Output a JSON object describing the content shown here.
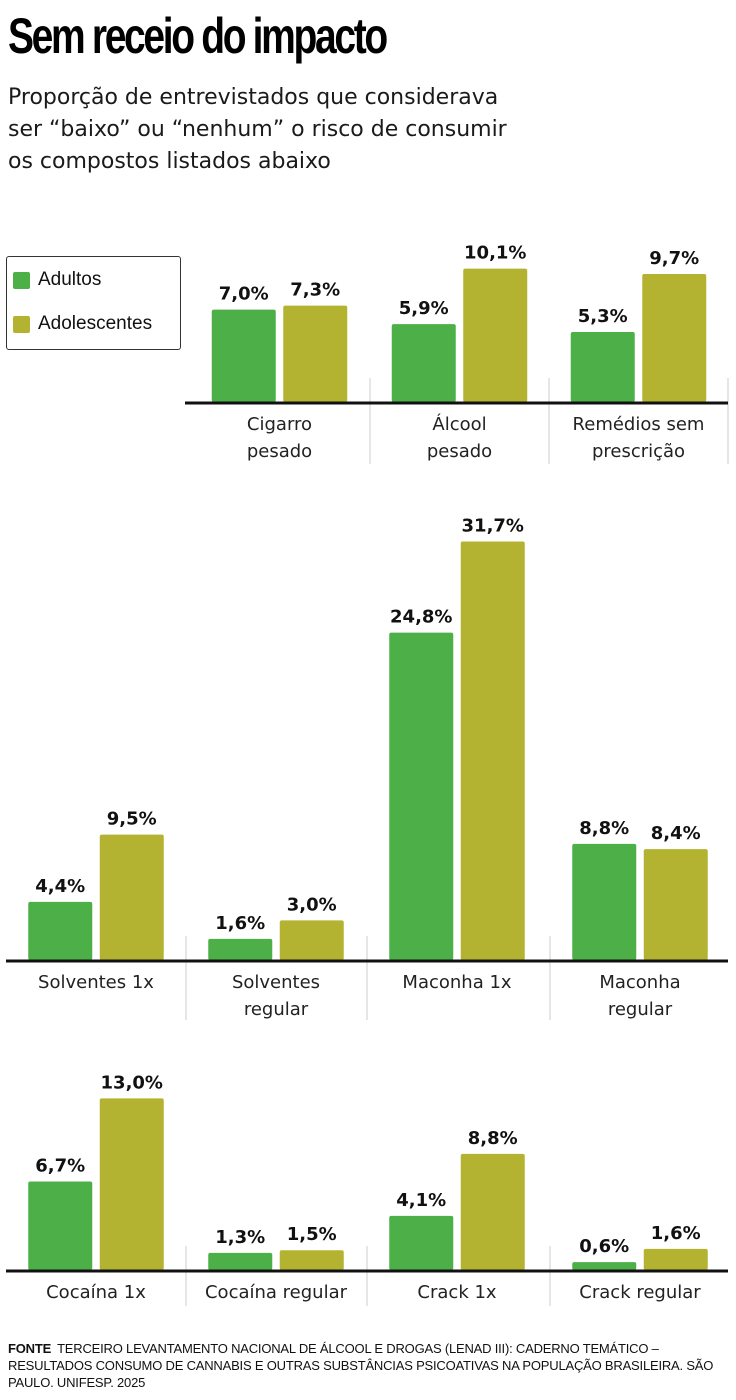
{
  "header": {
    "title": "Sem receio do impacto",
    "subtitle_lines": [
      "Proporção de entrevistados que considerava",
      "ser “baixo” ou “nenhum” o risco de consumir",
      "os compostos listados abaixo"
    ]
  },
  "legend": {
    "items": [
      {
        "label": "Adultos",
        "color": "#4caf47"
      },
      {
        "label": "Adolescentes",
        "color": "#b3b331"
      }
    ]
  },
  "colors": {
    "adultos": "#4caf47",
    "adolescentes": "#b3b331",
    "axis": "#111111",
    "separator": "#cccccc"
  },
  "chart_data": {
    "type": "bar",
    "title": "Sem receio do impacto",
    "xlabel": "",
    "ylabel": "",
    "unit": "%",
    "series": [
      {
        "name": "Adultos",
        "color": "#4caf47"
      },
      {
        "name": "Adolescentes",
        "color": "#b3b331"
      }
    ],
    "panels": [
      {
        "groups": [
          {
            "category": [
              "Cigarro",
              "pesado"
            ],
            "values": [
              7.0,
              7.3
            ],
            "labels": [
              "7,0%",
              "7,3%"
            ]
          },
          {
            "category": [
              "Álcool",
              "pesado"
            ],
            "values": [
              5.9,
              10.1
            ],
            "labels": [
              "5,9%",
              "10,1%"
            ]
          },
          {
            "category": [
              "Remédios sem",
              "prescrição"
            ],
            "values": [
              5.3,
              9.7
            ],
            "labels": [
              "5,3%",
              "9,7%"
            ]
          }
        ]
      },
      {
        "groups": [
          {
            "category": [
              "Solventes 1x"
            ],
            "values": [
              4.4,
              9.5
            ],
            "labels": [
              "4,4%",
              "9,5%"
            ]
          },
          {
            "category": [
              "Solventes",
              "regular"
            ],
            "values": [
              1.6,
              3.0
            ],
            "labels": [
              "1,6%",
              "3,0%"
            ]
          },
          {
            "category": [
              "Maconha 1x"
            ],
            "values": [
              24.8,
              31.7
            ],
            "labels": [
              "24,8%",
              "31,7%"
            ]
          },
          {
            "category": [
              "Maconha",
              "regular"
            ],
            "values": [
              8.8,
              8.4
            ],
            "labels": [
              "8,8%",
              "8,4%"
            ]
          }
        ]
      },
      {
        "groups": [
          {
            "category": [
              "Cocaína 1x"
            ],
            "values": [
              6.7,
              13.0
            ],
            "labels": [
              "6,7%",
              "13,0%"
            ]
          },
          {
            "category": [
              "Cocaína regular"
            ],
            "values": [
              1.3,
              1.5
            ],
            "labels": [
              "1,3%",
              "1,5%"
            ]
          },
          {
            "category": [
              "Crack 1x"
            ],
            "values": [
              4.1,
              8.8
            ],
            "labels": [
              "4,1%",
              "8,8%"
            ]
          },
          {
            "category": [
              "Crack regular"
            ],
            "values": [
              0.6,
              1.6
            ],
            "labels": [
              "0,6%",
              "1,6%"
            ]
          }
        ]
      }
    ]
  },
  "source": {
    "label": "FONTE",
    "text": "TERCEIRO LEVANTAMENTO NACIONAL DE ÁLCOOL E DROGAS (LENAD III): CADERNO TEMÁTICO – RESULTADOS CONSUMO DE CANNABIS E OUTRAS SUBSTÂNCIAS PSICOATIVAS NA POPULAÇÃO BRASILEIRA. SÃO PAULO. UNIFESP. 2025"
  }
}
